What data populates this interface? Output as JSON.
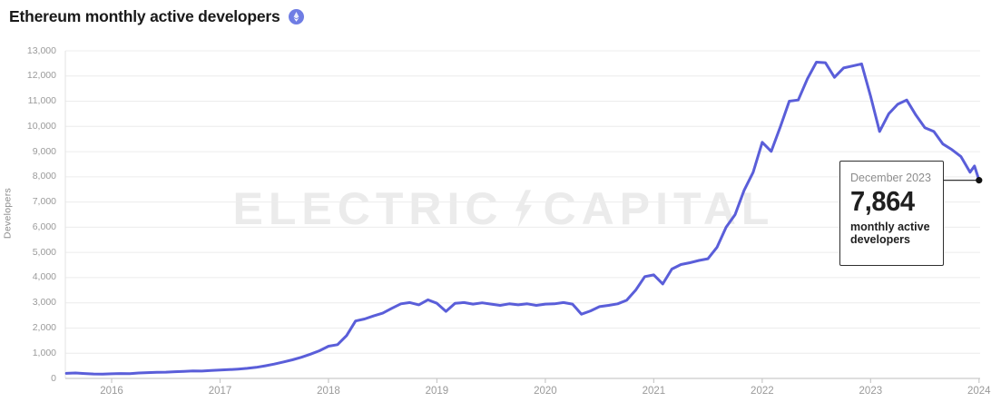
{
  "header": {
    "title": "Ethereum monthly active developers",
    "icon": "ethereum-icon"
  },
  "watermark": {
    "left": "ELECTRIC",
    "right": "CAPITAL"
  },
  "callout": {
    "date": "December 2023",
    "value": "7,864",
    "label_line1": "monthly active",
    "label_line2": "developers"
  },
  "colors": {
    "line": "#5a5ed9",
    "eth_badge": "#6f7de4",
    "watermark": "#ebebeb",
    "grid": "#ececec",
    "plot_border": "#e3e3e3",
    "axis": "#c9c9c9",
    "tick_label": "#9a9a9a",
    "title": "#1a1a1a",
    "callout_border": "#2f2f2f",
    "connector": "#333333",
    "dot": "#111111"
  },
  "chart_data": {
    "type": "line",
    "title": "Ethereum monthly active developers",
    "xlabel": "",
    "ylabel": "Developers",
    "grid": true,
    "legend": "none",
    "xlim": [
      2015.573,
      2024.01
    ],
    "ylim": [
      0,
      13000
    ],
    "x_ticks": [
      {
        "value": 2016,
        "label": "2016"
      },
      {
        "value": 2017,
        "label": "2017"
      },
      {
        "value": 2018,
        "label": "2018"
      },
      {
        "value": 2019,
        "label": "2019"
      },
      {
        "value": 2020,
        "label": "2020"
      },
      {
        "value": 2021,
        "label": "2021"
      },
      {
        "value": 2022,
        "label": "2022"
      },
      {
        "value": 2023,
        "label": "2023"
      },
      {
        "value": 2024,
        "label": "2024"
      }
    ],
    "y_ticks": [
      {
        "value": 0,
        "label": "0"
      },
      {
        "value": 1000,
        "label": "1,000"
      },
      {
        "value": 2000,
        "label": "2,000"
      },
      {
        "value": 3000,
        "label": "3,000"
      },
      {
        "value": 4000,
        "label": "4,000"
      },
      {
        "value": 5000,
        "label": "5,000"
      },
      {
        "value": 6000,
        "label": "6,000"
      },
      {
        "value": 7000,
        "label": "7,000"
      },
      {
        "value": 8000,
        "label": "8,000"
      },
      {
        "value": 9000,
        "label": "9,000"
      },
      {
        "value": 10000,
        "label": "10,000"
      },
      {
        "value": 11000,
        "label": "11,000"
      },
      {
        "value": 12000,
        "label": "12,000"
      },
      {
        "value": 13000,
        "label": "13,000"
      }
    ],
    "series": [
      {
        "name": "Ethereum monthly active developers",
        "points": [
          [
            2015.583,
            200
          ],
          [
            2015.667,
            215
          ],
          [
            2015.75,
            195
          ],
          [
            2015.833,
            175
          ],
          [
            2015.917,
            170
          ],
          [
            2016,
            185
          ],
          [
            2016.083,
            195
          ],
          [
            2016.167,
            190
          ],
          [
            2016.25,
            215
          ],
          [
            2016.333,
            230
          ],
          [
            2016.417,
            245
          ],
          [
            2016.5,
            250
          ],
          [
            2016.583,
            265
          ],
          [
            2016.667,
            280
          ],
          [
            2016.75,
            295
          ],
          [
            2016.833,
            290
          ],
          [
            2016.917,
            315
          ],
          [
            2017,
            335
          ],
          [
            2017.083,
            350
          ],
          [
            2017.167,
            370
          ],
          [
            2017.25,
            400
          ],
          [
            2017.333,
            440
          ],
          [
            2017.417,
            500
          ],
          [
            2017.5,
            570
          ],
          [
            2017.583,
            650
          ],
          [
            2017.667,
            740
          ],
          [
            2017.75,
            840
          ],
          [
            2017.833,
            960
          ],
          [
            2017.917,
            1100
          ],
          [
            2018,
            1280
          ],
          [
            2018.083,
            1340
          ],
          [
            2018.167,
            1700
          ],
          [
            2018.25,
            2280
          ],
          [
            2018.333,
            2360
          ],
          [
            2018.417,
            2480
          ],
          [
            2018.5,
            2590
          ],
          [
            2018.583,
            2780
          ],
          [
            2018.667,
            2960
          ],
          [
            2018.75,
            3010
          ],
          [
            2018.833,
            2920
          ],
          [
            2018.917,
            3120
          ],
          [
            2019,
            2980
          ],
          [
            2019.083,
            2660
          ],
          [
            2019.167,
            2980
          ],
          [
            2019.25,
            3010
          ],
          [
            2019.333,
            2950
          ],
          [
            2019.417,
            3000
          ],
          [
            2019.5,
            2950
          ],
          [
            2019.583,
            2900
          ],
          [
            2019.667,
            2960
          ],
          [
            2019.75,
            2920
          ],
          [
            2019.833,
            2960
          ],
          [
            2019.917,
            2900
          ],
          [
            2020,
            2950
          ],
          [
            2020.083,
            2960
          ],
          [
            2020.167,
            3010
          ],
          [
            2020.25,
            2950
          ],
          [
            2020.333,
            2550
          ],
          [
            2020.417,
            2680
          ],
          [
            2020.5,
            2850
          ],
          [
            2020.583,
            2900
          ],
          [
            2020.667,
            2960
          ],
          [
            2020.75,
            3100
          ],
          [
            2020.833,
            3500
          ],
          [
            2020.917,
            4040
          ],
          [
            2021,
            4110
          ],
          [
            2021.083,
            3750
          ],
          [
            2021.167,
            4340
          ],
          [
            2021.25,
            4520
          ],
          [
            2021.333,
            4590
          ],
          [
            2021.417,
            4680
          ],
          [
            2021.5,
            4750
          ],
          [
            2021.583,
            5200
          ],
          [
            2021.667,
            6000
          ],
          [
            2021.75,
            6500
          ],
          [
            2021.833,
            7460
          ],
          [
            2021.917,
            8180
          ],
          [
            2022,
            9370
          ],
          [
            2022.083,
            9010
          ],
          [
            2022.167,
            9980
          ],
          [
            2022.25,
            11000
          ],
          [
            2022.333,
            11050
          ],
          [
            2022.417,
            11890
          ],
          [
            2022.5,
            12550
          ],
          [
            2022.583,
            12530
          ],
          [
            2022.667,
            11950
          ],
          [
            2022.75,
            12320
          ],
          [
            2022.833,
            12400
          ],
          [
            2022.917,
            12480
          ],
          [
            2023,
            11200
          ],
          [
            2023.083,
            9800
          ],
          [
            2023.167,
            10500
          ],
          [
            2023.25,
            10880
          ],
          [
            2023.333,
            11050
          ],
          [
            2023.417,
            10450
          ],
          [
            2023.5,
            9950
          ],
          [
            2023.583,
            9800
          ],
          [
            2023.667,
            9300
          ],
          [
            2023.75,
            9080
          ],
          [
            2023.833,
            8800
          ],
          [
            2023.917,
            8180
          ],
          [
            2023.958,
            8430
          ],
          [
            2024,
            7864
          ]
        ]
      }
    ],
    "annotation": {
      "date": "December 2023",
      "value": 7864,
      "text": "7,864 monthly active developers",
      "point_x": 2024.0,
      "point_y": 7864
    }
  }
}
